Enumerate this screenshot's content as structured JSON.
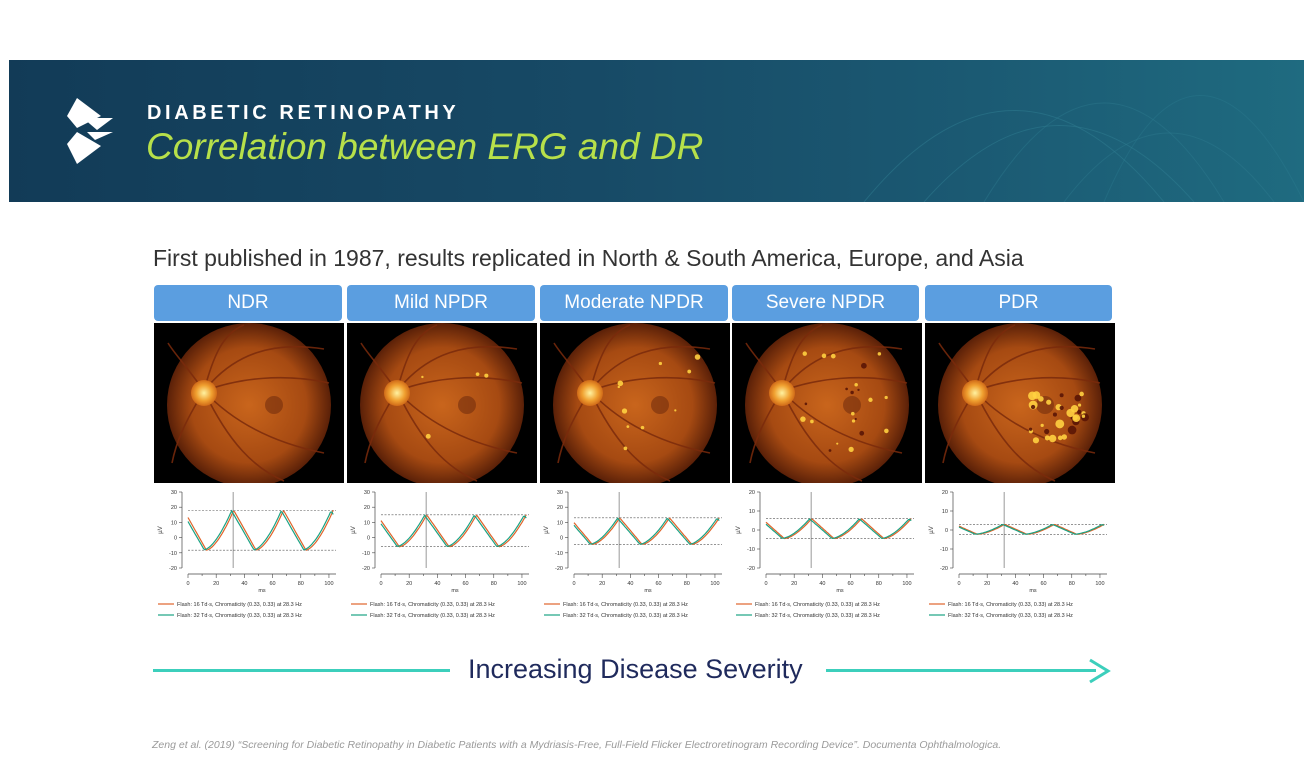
{
  "header": {
    "kicker": "DIABETIC RETINOPATHY",
    "title": "Correlation between ERG and DR",
    "colors": {
      "banner": "#174a66",
      "title": "#b7e04a"
    },
    "logo_icon": "diamond-chevron-logo"
  },
  "subtitle": "First published in 1987, results replicated in North & South America, Europe, and Asia",
  "stages": [
    {
      "label": "NDR",
      "amplitude": 15,
      "ylim": [
        -20,
        30
      ],
      "yticks": [
        "30",
        "20",
        "10",
        "0",
        "-10",
        "-20"
      ],
      "lesions": 0
    },
    {
      "label": "Mild NPDR",
      "amplitude": 12,
      "ylim": [
        -20,
        30
      ],
      "yticks": [
        "30",
        "20",
        "10",
        "0",
        "-10",
        "-20"
      ],
      "lesions": 1
    },
    {
      "label": "Moderate NPDR",
      "amplitude": 10,
      "ylim": [
        -20,
        30
      ],
      "yticks": [
        "30",
        "20",
        "10",
        "0",
        "-10",
        "-20"
      ],
      "lesions": 2
    },
    {
      "label": "Severe NPDR",
      "amplitude": 6,
      "ylim": [
        -20,
        20
      ],
      "yticks": [
        "20",
        "10",
        "0",
        "-10",
        "-20"
      ],
      "lesions": 3
    },
    {
      "label": "PDR",
      "amplitude": 3,
      "ylim": [
        -20,
        20
      ],
      "yticks": [
        "20",
        "10",
        "0",
        "-10",
        "-20"
      ],
      "lesions": 4
    }
  ],
  "erg_common": {
    "ylabel": "µV",
    "xlabel": "ms",
    "xticks": [
      "0",
      "20",
      "40",
      "60",
      "80",
      "100"
    ],
    "legend": [
      {
        "text": "Flash: 16 Td·s, Chromaticity (0.33, 0.33) at 28.3 Hz",
        "color": "#e0642a"
      },
      {
        "text": "Flash: 32 Td·s, Chromaticity (0.33, 0.33) at 28.3 Hz",
        "color": "#1aa384"
      }
    ]
  },
  "severity_label": "Increasing Disease Severity",
  "citation": "Zeng et al. (2019) “Screening for Diabetic Retinopathy in Diabetic Patients with a Mydriasis-Free, Full-Field Flicker Electroretinogram Recording Device”. Documenta Ophthalmologica."
}
